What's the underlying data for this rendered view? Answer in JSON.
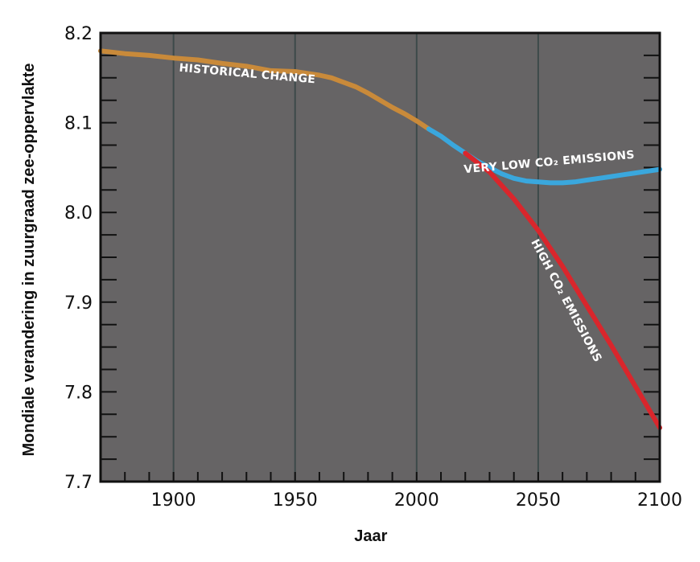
{
  "chart_data": {
    "type": "line",
    "xlabel": "Jaar",
    "ylabel": "Mondiale verandering in zuurgraad zee-oppervlakte",
    "xlim": [
      1870,
      2100
    ],
    "ylim": [
      7.7,
      8.2
    ],
    "x_ticks": [
      1900,
      1950,
      2000,
      2050,
      2100
    ],
    "y_ticks": [
      "7.7",
      "7.8",
      "7.9",
      "8.0",
      "8.1",
      "8.2"
    ],
    "vertical_grid": true,
    "plot_background": "#666465",
    "series": [
      {
        "name": "HISTORICAL CHANGE",
        "color": "#c98a3a",
        "x": [
          1870,
          1880,
          1890,
          1900,
          1910,
          1920,
          1930,
          1940,
          1950,
          1960,
          1965,
          1970,
          1975,
          1980,
          1985,
          1990,
          1995,
          2000,
          2005
        ],
        "y": [
          8.18,
          8.177,
          8.175,
          8.172,
          8.17,
          8.166,
          8.163,
          8.158,
          8.157,
          8.153,
          8.15,
          8.145,
          8.14,
          8.133,
          8.125,
          8.117,
          8.11,
          8.102,
          8.093
        ]
      },
      {
        "name": "VERY LOW CO₂ EMISSIONS",
        "color": "#3aa7dd",
        "x": [
          2005,
          2010,
          2015,
          2020,
          2025,
          2030,
          2035,
          2040,
          2045,
          2050,
          2055,
          2060,
          2065,
          2070,
          2075,
          2080,
          2085,
          2090,
          2095,
          2100
        ],
        "y": [
          8.093,
          8.085,
          8.075,
          8.066,
          8.057,
          8.05,
          8.043,
          8.038,
          8.035,
          8.034,
          8.033,
          8.033,
          8.034,
          8.036,
          8.038,
          8.04,
          8.042,
          8.044,
          8.046,
          8.048
        ]
      },
      {
        "name": "HIGH CO₂ EMISSIONS",
        "color": "#d9262c",
        "x": [
          2020,
          2030,
          2040,
          2050,
          2060,
          2070,
          2080,
          2090,
          2100
        ],
        "y": [
          8.066,
          8.045,
          8.015,
          7.98,
          7.94,
          7.896,
          7.852,
          7.806,
          7.76
        ]
      }
    ],
    "annotations": [
      {
        "text": "HISTORICAL CHANGE",
        "series": "HISTORICAL CHANGE"
      },
      {
        "text": "VERY LOW CO₂ EMISSIONS",
        "series": "VERY LOW CO₂ EMISSIONS"
      },
      {
        "text": "HIGH CO₂ EMISSIONS",
        "series": "HIGH CO₂ EMISSIONS"
      }
    ]
  }
}
